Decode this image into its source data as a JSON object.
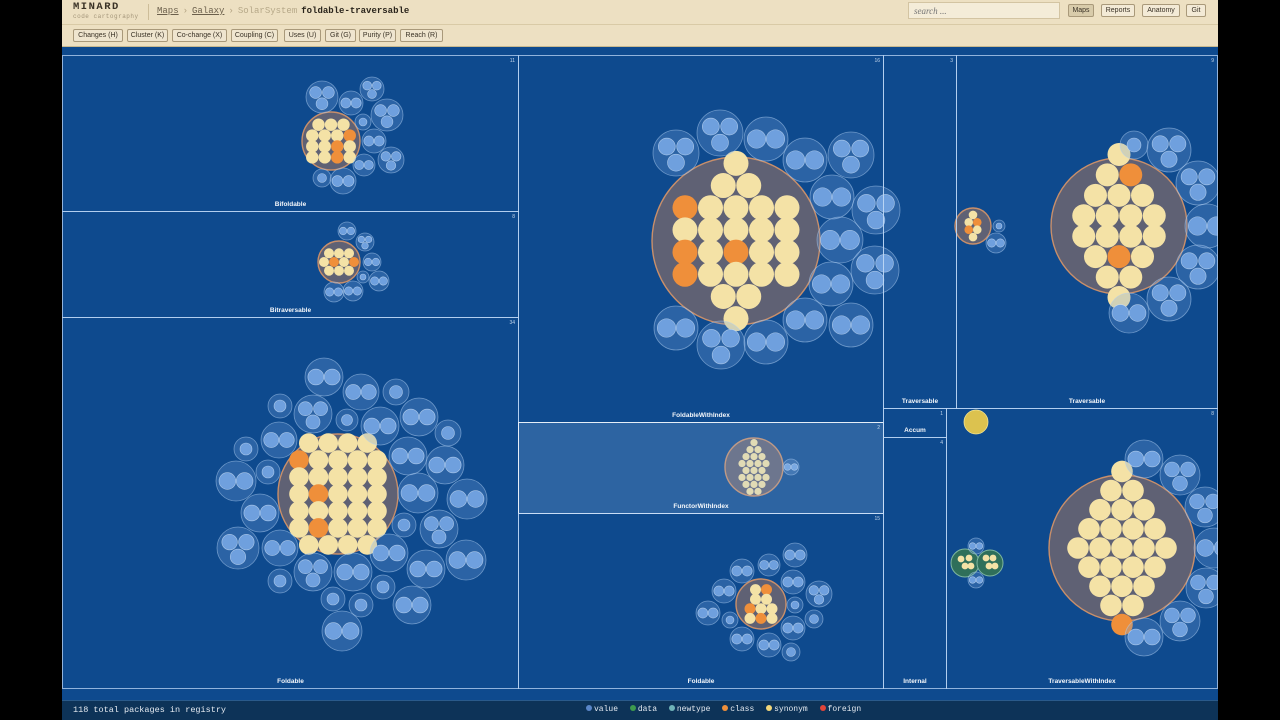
{
  "app": {
    "name": "MINARD",
    "tagline": "code cartography"
  },
  "breadcrumb": {
    "maps": "Maps",
    "sep1": "›",
    "galaxy": "Galaxy",
    "sep2": "›",
    "solar": "SolarSystem",
    "current": "foldable-traversable"
  },
  "search": {
    "placeholder": "search ..."
  },
  "nav": {
    "maps": "Maps",
    "reports": "Reports",
    "anatomy": "Anatomy",
    "git": "Git",
    "active": "Maps"
  },
  "toolbar": {
    "changes": "Changes (H)",
    "cluster": "Cluster (K)",
    "cochange": "Co-change (X)",
    "coupling": "Coupling (C)",
    "uses": "Uses (U)",
    "git": "Git (G)",
    "purity": "Purity (P)",
    "reach": "Reach (R)"
  },
  "modules": {
    "bifoldable": {
      "label": "Bifoldable",
      "count": "11"
    },
    "bitraversable": {
      "label": "Bitraversable",
      "count": "8"
    },
    "foldable_left": {
      "label": "Foldable",
      "count": "34"
    },
    "foldable_with_index": {
      "label": "FoldableWithIndex",
      "count": "16"
    },
    "functor_with_index": {
      "label": "FunctorWithIndex",
      "count": "2"
    },
    "foldable_mid": {
      "label": "Foldable",
      "count": "15"
    },
    "traversable_small": {
      "label": "Traversable",
      "count": "3"
    },
    "traversable": {
      "label": "Traversable",
      "count": "9"
    },
    "accum": {
      "label": "Accum",
      "count": "1"
    },
    "internal": {
      "label": "Internal",
      "count": "4"
    },
    "traversable_with_index": {
      "label": "TraversableWithIndex",
      "count": "8"
    }
  },
  "footer": {
    "total": "118 total packages in registry"
  },
  "legend": [
    {
      "label": "value",
      "color": "#5a86c8"
    },
    {
      "label": "data",
      "color": "#3e9a4e"
    },
    {
      "label": "newtype",
      "color": "#6fb3b8"
    },
    {
      "label": "class",
      "color": "#ef8f3a"
    },
    {
      "label": "synonym",
      "color": "#f3d77a"
    },
    {
      "label": "foreign",
      "color": "#e0453a"
    }
  ]
}
